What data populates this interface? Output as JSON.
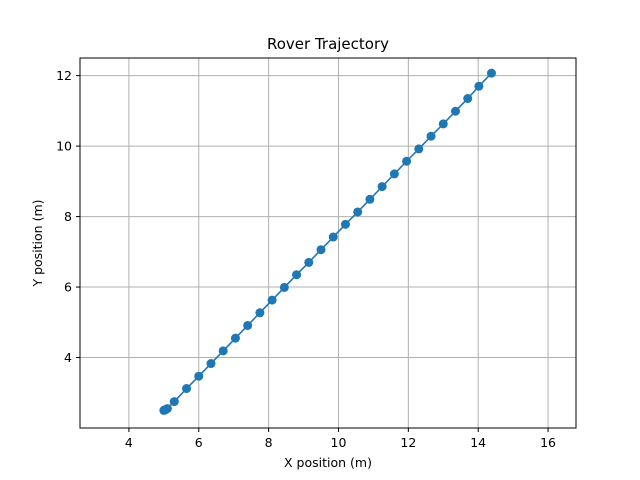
{
  "chart_data": {
    "type": "line",
    "title": "Rover Trajectory",
    "xlabel": "X position (m)",
    "ylabel": "Y position (m)",
    "xlim": [
      2.6,
      16.8
    ],
    "ylim": [
      2.0,
      12.5
    ],
    "xticks": [
      4,
      6,
      8,
      10,
      12,
      14,
      16
    ],
    "yticks": [
      4,
      6,
      8,
      10,
      12
    ],
    "grid": true,
    "color": "#1f77b4",
    "series": [
      {
        "x": [
          5.0,
          5.02,
          5.05,
          5.1,
          5.3,
          5.65,
          6.0,
          6.35,
          6.7,
          7.05,
          7.4,
          7.75,
          8.1,
          8.45,
          8.8,
          9.15,
          9.5,
          9.85,
          10.2,
          10.55,
          10.9,
          11.25,
          11.6,
          11.95,
          12.3,
          12.65,
          13.0,
          13.35,
          13.7,
          14.02,
          14.38
        ],
        "y": [
          2.5,
          2.51,
          2.52,
          2.55,
          2.75,
          3.12,
          3.47,
          3.83,
          4.19,
          4.55,
          4.91,
          5.27,
          5.63,
          5.99,
          6.35,
          6.7,
          7.06,
          7.42,
          7.78,
          8.13,
          8.49,
          8.85,
          9.21,
          9.57,
          9.92,
          10.28,
          10.63,
          10.99,
          11.35,
          11.7,
          12.07
        ]
      }
    ]
  }
}
